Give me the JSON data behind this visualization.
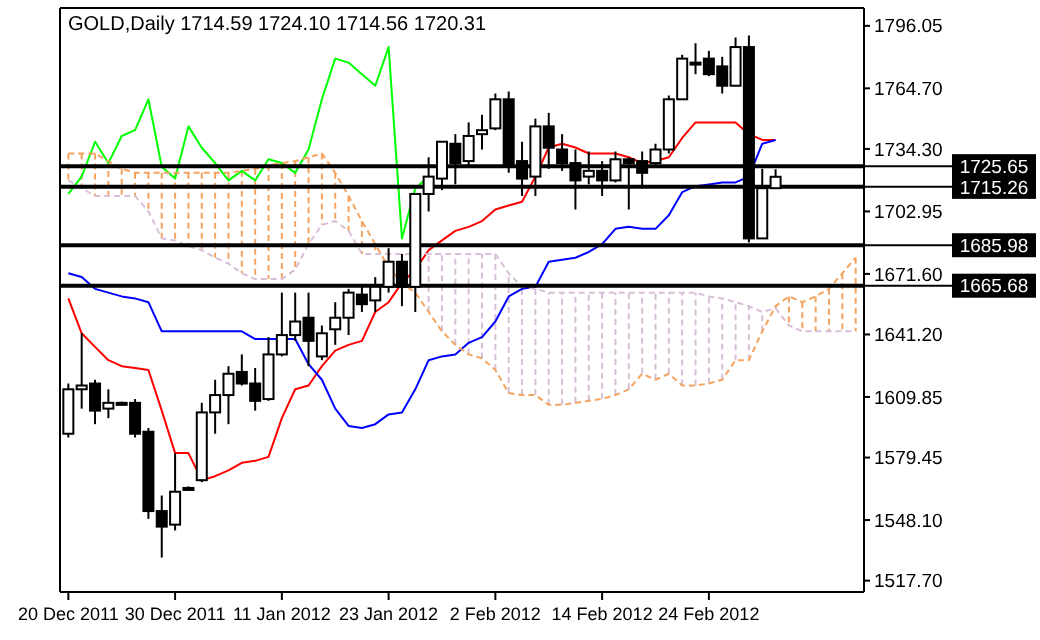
{
  "chart_data": {
    "type": "candlestick",
    "title": "GOLD,Daily 1714.59 1724.10 1714.56 1720.31",
    "categories": [
      "20 Dec 2011",
      null,
      null,
      null,
      null,
      null,
      null,
      null,
      "30 Dec 2011",
      null,
      null,
      null,
      null,
      null,
      null,
      null,
      "11 Jan 2012",
      null,
      null,
      null,
      null,
      null,
      null,
      null,
      "23 Jan 2012",
      null,
      null,
      null,
      null,
      null,
      null,
      null,
      "2 Feb 2012",
      null,
      null,
      null,
      null,
      null,
      null,
      null,
      "14 Feb 2012",
      null,
      null,
      null,
      null,
      null,
      null,
      null,
      "24 Feb 2012",
      null,
      null,
      null,
      null,
      null,
      null,
      null,
      null,
      null,
      null,
      null
    ],
    "ohlc": [
      [
        1591.4,
        1616.6,
        1589.5,
        1613.7
      ],
      [
        1613.7,
        1641.8,
        1604.0,
        1615.6
      ],
      [
        1616.6,
        1618.5,
        1596.2,
        1603.0
      ],
      [
        1604.0,
        1613.7,
        1599.2,
        1606.9
      ],
      [
        1606.9,
        1607.5,
        1606.5,
        1606.9
      ],
      [
        1606.9,
        1608.8,
        1589.5,
        1591.4
      ],
      [
        1592.4,
        1594.3,
        1548.7,
        1552.6
      ],
      [
        1552.6,
        1560.4,
        1529.3,
        1544.8
      ],
      [
        1545.8,
        1581.7,
        1542.9,
        1562.3
      ],
      [
        1564.2,
        1565.0,
        1563.5,
        1564.2
      ],
      [
        1568.1,
        1606.9,
        1567.1,
        1602.1
      ],
      [
        1602.1,
        1618.5,
        1591.4,
        1610.8
      ],
      [
        1610.8,
        1625.3,
        1596.2,
        1621.5
      ],
      [
        1622.4,
        1631.2,
        1615.6,
        1616.6
      ],
      [
        1616.6,
        1624.4,
        1603.0,
        1607.9
      ],
      [
        1608.8,
        1639.9,
        1607.9,
        1631.2
      ],
      [
        1631.2,
        1662.2,
        1630.2,
        1640.9
      ],
      [
        1640.9,
        1662.2,
        1638.0,
        1647.7
      ],
      [
        1649.6,
        1662.2,
        1625.3,
        1638.0
      ],
      [
        1630.2,
        1645.7,
        1628.3,
        1641.8
      ],
      [
        1643.8,
        1657.4,
        1636.0,
        1649.6
      ],
      [
        1649.6,
        1664.1,
        1640.9,
        1662.2
      ],
      [
        1661.2,
        1665.1,
        1652.5,
        1656.4
      ],
      [
        1658.3,
        1670.0,
        1652.5,
        1665.1
      ],
      [
        1665.1,
        1684.5,
        1662.2,
        1677.7
      ],
      [
        1677.7,
        1681.6,
        1655.4,
        1665.1
      ],
      [
        1665.1,
        1711.7,
        1652.5,
        1711.7
      ],
      [
        1711.7,
        1730.1,
        1702.9,
        1720.4
      ],
      [
        1719.4,
        1737.9,
        1713.6,
        1737.9
      ],
      [
        1736.9,
        1741.7,
        1716.5,
        1727.2
      ],
      [
        1728.2,
        1747.6,
        1726.2,
        1740.8
      ],
      [
        1741.7,
        1751.4,
        1734.0,
        1743.7
      ],
      [
        1744.6,
        1762.1,
        1743.7,
        1759.2
      ],
      [
        1759.2,
        1763.1,
        1722.3,
        1725.3
      ],
      [
        1728.2,
        1737.9,
        1710.7,
        1719.4
      ],
      [
        1720.4,
        1749.5,
        1710.7,
        1745.6
      ],
      [
        1745.6,
        1752.4,
        1724.3,
        1734.9
      ],
      [
        1734.0,
        1741.7,
        1723.3,
        1727.2
      ],
      [
        1727.2,
        1734.0,
        1703.9,
        1718.5
      ],
      [
        1720.4,
        1733.0,
        1716.5,
        1723.3
      ],
      [
        1723.3,
        1728.2,
        1710.7,
        1718.5
      ],
      [
        1718.5,
        1733.0,
        1717.5,
        1729.1
      ],
      [
        1729.1,
        1730.1,
        1703.9,
        1727.2
      ],
      [
        1728.2,
        1733.0,
        1715.6,
        1722.3
      ],
      [
        1727.2,
        1736.9,
        1726.2,
        1734.0
      ],
      [
        1734.0,
        1761.1,
        1732.0,
        1759.2
      ],
      [
        1759.2,
        1781.5,
        1759.2,
        1779.6
      ],
      [
        1777.6,
        1787.3,
        1771.8,
        1777.6
      ],
      [
        1779.6,
        1783.5,
        1770.8,
        1771.8
      ],
      [
        1775.7,
        1780.5,
        1762.1,
        1766.0
      ],
      [
        1766.0,
        1790.2,
        1766.0,
        1785.4
      ],
      [
        1785.4,
        1791.2,
        1687.4,
        1689.4
      ],
      [
        1689.4,
        1724.3,
        1689.4,
        1714.6
      ],
      [
        1714.59,
        1724.1,
        1714.56,
        1720.31
      ],
      null,
      null,
      null,
      null,
      null,
      null
    ],
    "series": [
      {
        "type": "line",
        "color": "#ff0000",
        "values": [
          1659.3,
          1641.8,
          1635.0,
          1628.3,
          1625.3,
          1624.4,
          1623.4,
          1603.0,
          1581.7,
          1581.7,
          1568.1,
          1570.1,
          1573.0,
          1576.8,
          1577.8,
          1579.8,
          1599.2,
          1613.7,
          1615.6,
          1625.3,
          1633.1,
          1636.0,
          1638.0,
          1652.5,
          1657.4,
          1667.1,
          1673.8,
          1683.5,
          1688.4,
          1693.2,
          1695.2,
          1698.1,
          1703.9,
          1705.9,
          1707.8,
          1720.4,
          1735.0,
          1736.9,
          1735.0,
          1732.0,
          1732.0,
          1732.0,
          1730.1,
          1727.2,
          1728.2,
          1730.1,
          1739.8,
          1747.6,
          1747.6,
          1747.6,
          1747.6,
          1741.7,
          1738.8,
          1738.8,
          null,
          null,
          null,
          null,
          null,
          null
        ]
      },
      {
        "type": "line",
        "color": "#0000ff",
        "values": [
          1671.9,
          1670.0,
          1664.1,
          1662.2,
          1660.3,
          1659.3,
          1657.4,
          1642.8,
          1642.8,
          1642.8,
          1642.8,
          1642.8,
          1642.8,
          1642.8,
          1638.9,
          1638.9,
          1638.9,
          1638.9,
          1626.3,
          1618.5,
          1604.0,
          1595.3,
          1594.3,
          1596.2,
          1601.1,
          1602.1,
          1613.7,
          1628.3,
          1630.2,
          1631.2,
          1637.0,
          1639.9,
          1647.7,
          1660.3,
          1664.1,
          1665.1,
          1677.7,
          1678.7,
          1679.7,
          1682.6,
          1686.5,
          1694.2,
          1695.2,
          1694.2,
          1694.2,
          1701.0,
          1712.6,
          1715.6,
          1716.5,
          1717.5,
          1717.5,
          1720.4,
          1736.9,
          1738.8,
          null,
          null,
          null,
          null,
          null,
          null
        ]
      },
      {
        "type": "line",
        "color": "#00ff00",
        "values": [
          1711.7,
          1720.4,
          1737.9,
          1727.2,
          1740.8,
          1743.7,
          1759.2,
          1725.3,
          1719.4,
          1745.6,
          1734.9,
          1727.2,
          1718.5,
          1723.3,
          1718.5,
          1729.1,
          1727.2,
          1722.3,
          1734.0,
          1759.2,
          1779.6,
          1777.6,
          1771.8,
          1766.0,
          1785.4,
          1689.4,
          1714.6,
          1720.31,
          null,
          null,
          null,
          null,
          null,
          null,
          null,
          null,
          null,
          null,
          null,
          null,
          null,
          null,
          null,
          null,
          null,
          null,
          null,
          null,
          null,
          null,
          null,
          null,
          null,
          null,
          null,
          null,
          null,
          null,
          null,
          null
        ]
      },
      {
        "type": "line",
        "color": "#f4a460",
        "line_style": "dashed",
        "values": [
          1732.0,
          1732.0,
          1732.0,
          1728.2,
          1724.3,
          1722.3,
          1722.3,
          1722.3,
          1722.3,
          1722.3,
          1722.3,
          1722.3,
          1722.3,
          1723.3,
          1724.3,
          1726.2,
          1727.2,
          1728.2,
          1730.1,
          1732.0,
          1722.3,
          1710.7,
          1698.1,
          1686.5,
          1674.8,
          1667.1,
          1662.2,
          1652.5,
          1642.8,
          1636.0,
          1631.2,
          1629.2,
          1623.4,
          1611.8,
          1610.8,
          1610.8,
          1605.9,
          1605.9,
          1606.9,
          1607.9,
          1608.9,
          1610.8,
          1613.7,
          1621.5,
          1618.5,
          1621.5,
          1615.6,
          1615.6,
          1616.6,
          1618.5,
          1628.3,
          1628.3,
          1642.8,
          1655.4,
          1660.3,
          1657.4,
          1660.3,
          1664.1,
          1671.9,
          1679.7
        ]
      },
      {
        "type": "line",
        "color": "#d8bfd8",
        "line_style": "dashed",
        "values": [
          1718.5,
          1714.6,
          1710.7,
          1710.7,
          1710.7,
          1710.7,
          1702.9,
          1689.4,
          1688.4,
          1685.5,
          1683.5,
          1679.7,
          1676.8,
          1671.9,
          1669.0,
          1669.0,
          1669.0,
          1673.8,
          1686.5,
          1696.2,
          1698.1,
          1693.2,
          1681.6,
          1681.6,
          1681.6,
          1681.6,
          1681.6,
          1681.6,
          1681.6,
          1681.6,
          1681.6,
          1681.6,
          1681.6,
          1671.9,
          1665.1,
          1664.1,
          1662.2,
          1662.2,
          1662.2,
          1662.2,
          1662.2,
          1662.2,
          1662.2,
          1662.2,
          1662.2,
          1662.2,
          1662.2,
          1662.2,
          1660.3,
          1659.3,
          1657.4,
          1655.4,
          1652.5,
          1654.4,
          1645.7,
          1642.8,
          1642.8,
          1642.8,
          1642.8,
          1642.8
        ]
      }
    ],
    "ylim": [
      1512,
      1805
    ],
    "yticks": [
      1796.05,
      {
        "value": 1764.7,
        "label": "1764.70"
      },
      {
        "value": 1734.3,
        "label": "1734.30"
      },
      1702.95,
      {
        "value": 1671.6,
        "label": "1671.60"
      },
      {
        "value": 1641.2,
        "label": "1641.20"
      },
      1609.85,
      1579.45,
      {
        "value": 1548.1,
        "label": "1548.10"
      },
      {
        "value": 1517.7,
        "label": "1517.70"
      }
    ],
    "ref_lines": [
      {
        "axis": "y",
        "value": 1725.65,
        "label": "1725.65",
        "color": "#000000"
      },
      {
        "axis": "y",
        "value": 1715.26,
        "label": "1715.26",
        "color": "#000000"
      },
      {
        "axis": "y",
        "value": 1685.98,
        "label": "1685.98",
        "color": "#000000"
      },
      {
        "axis": "y",
        "value": 1665.68,
        "label": "1665.68",
        "color": "#000000"
      }
    ]
  }
}
